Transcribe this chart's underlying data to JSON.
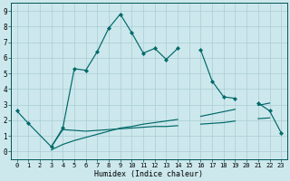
{
  "xlabel": "Humidex (Indice chaleur)",
  "bg_color": "#cce8ec",
  "line_color": "#006868",
  "grid_color": "#aaccd4",
  "xlim": [
    -0.5,
    23.5
  ],
  "ylim": [
    -0.5,
    9.5
  ],
  "x_ticks": [
    0,
    1,
    2,
    3,
    4,
    5,
    6,
    7,
    8,
    9,
    10,
    11,
    12,
    13,
    14,
    15,
    16,
    17,
    18,
    19,
    20,
    21,
    22,
    23
  ],
  "y_ticks": [
    0,
    1,
    2,
    3,
    4,
    5,
    6,
    7,
    8,
    9
  ],
  "series1_x": [
    0,
    1,
    3,
    4,
    5,
    6,
    7,
    8,
    9,
    10,
    11,
    12,
    13,
    14,
    16,
    17,
    18,
    19,
    21,
    22,
    23
  ],
  "series1_y": [
    2.6,
    1.8,
    0.3,
    1.5,
    5.3,
    5.2,
    6.4,
    7.9,
    8.8,
    7.6,
    6.3,
    6.6,
    5.9,
    6.6,
    6.5,
    4.5,
    3.5,
    3.4,
    3.1,
    2.6,
    1.2
  ],
  "series1_gaps": [
    [
      1,
      2
    ],
    [
      14,
      16
    ],
    [
      19,
      21
    ]
  ],
  "series2_x": [
    3,
    4,
    5,
    6,
    7,
    8,
    9,
    10,
    11,
    12,
    13,
    14,
    16,
    17,
    18,
    19,
    21,
    22
  ],
  "series2_y": [
    0.3,
    1.4,
    1.35,
    1.3,
    1.35,
    1.4,
    1.45,
    1.5,
    1.55,
    1.6,
    1.6,
    1.65,
    1.75,
    1.8,
    1.85,
    1.95,
    2.1,
    2.15
  ],
  "series3_x": [
    3,
    4,
    5,
    6,
    7,
    8,
    9,
    10,
    11,
    12,
    13,
    14,
    16,
    17,
    18,
    19,
    21,
    22
  ],
  "series3_y": [
    0.1,
    0.45,
    0.7,
    0.9,
    1.1,
    1.3,
    1.5,
    1.6,
    1.75,
    1.85,
    1.95,
    2.05,
    2.25,
    2.4,
    2.55,
    2.7,
    2.95,
    3.1
  ],
  "tick_fontsize": 5,
  "xlabel_fontsize": 6
}
